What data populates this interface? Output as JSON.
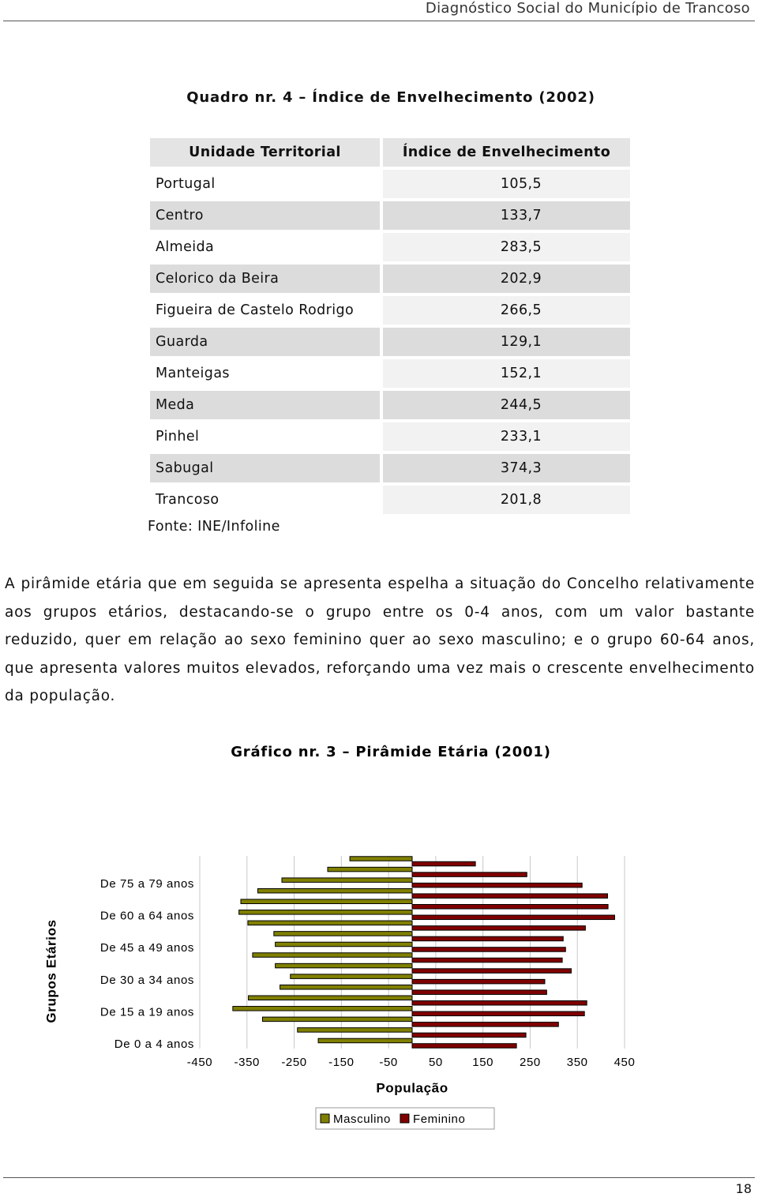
{
  "header": {
    "running_title": "Diagnóstico Social do Município de Trancoso"
  },
  "table": {
    "title": "Quadro nr. 4 – Índice de Envelhecimento (2002)",
    "columns": [
      "Unidade Territorial",
      "Índice de Envelhecimento"
    ],
    "rows": [
      [
        "Portugal",
        "105,5"
      ],
      [
        "Centro",
        "133,7"
      ],
      [
        "Almeida",
        "283,5"
      ],
      [
        "Celorico da Beira",
        "202,9"
      ],
      [
        "Figueira de Castelo Rodrigo",
        "266,5"
      ],
      [
        "Guarda",
        "129,1"
      ],
      [
        "Manteigas",
        "152,1"
      ],
      [
        "Meda",
        "244,5"
      ],
      [
        "Pinhel",
        "233,1"
      ],
      [
        "Sabugal",
        "374,3"
      ],
      [
        "Trancoso",
        "201,8"
      ]
    ],
    "source": "Fonte: INE/Infoline"
  },
  "paragraph": "A pirâmide etária que em seguida se apresenta espelha a situação do Concelho relativamente aos grupos etários, destacando-se o grupo entre os 0-4 anos, com um valor bastante reduzido, quer em relação ao sexo feminino quer ao sexo masculino; e o grupo 60-64 anos, que apresenta valores muitos elevados, reforçando uma vez mais o crescente envelhecimento da população.",
  "chart_data": {
    "type": "bar",
    "orientation": "horizontal",
    "title": "Gráfico nr. 3 – Pirâmide Etária (2001)",
    "xlabel": "População",
    "ylabel": "Grupos Etários",
    "categories": [
      "De 0 a 4 anos",
      null,
      null,
      "De 15 a 19 anos",
      null,
      null,
      "De 30 a 34 anos",
      null,
      null,
      "De 45 a 49 anos",
      null,
      null,
      "De 60 a 64 anos",
      null,
      null,
      "De 75 a 79 anos",
      null,
      null
    ],
    "series": [
      {
        "name": "Masculino",
        "color": "#808000",
        "values": [
          -199,
          -243,
          -317,
          -380,
          -347,
          -280,
          -258,
          -290,
          -338,
          -290,
          -293,
          -348,
          -367,
          -363,
          -327,
          -276,
          -179,
          -132
        ]
      },
      {
        "name": "Feminino",
        "color": "#800000",
        "values": [
          221,
          241,
          310,
          365,
          370,
          285,
          281,
          337,
          318,
          325,
          320,
          367,
          429,
          415,
          414,
          360,
          243,
          134
        ]
      }
    ],
    "xlim": [
      -450,
      450
    ],
    "xticks": [
      -450,
      -350,
      -250,
      -150,
      -50,
      50,
      150,
      250,
      350,
      450
    ],
    "grid": true,
    "legend": "bottom"
  },
  "footer": {
    "page_number": "18"
  }
}
